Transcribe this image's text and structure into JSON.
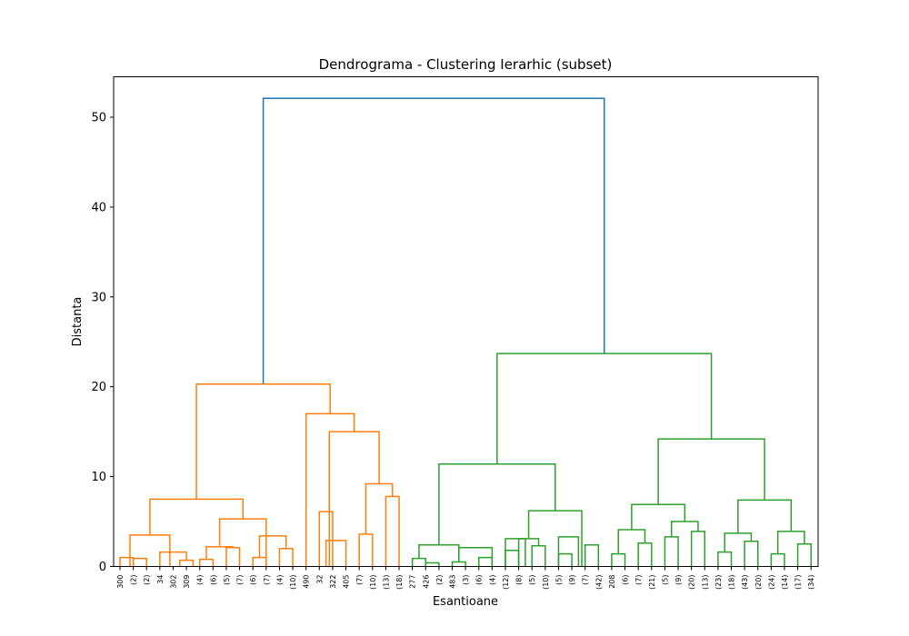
{
  "chart_data": {
    "type": "dendrogram",
    "title": "Dendrograma - Clustering Ierarhic (subset)",
    "xlabel": "Esantioane",
    "ylabel": "Distanta",
    "ylim": [
      0,
      54.5
    ],
    "yticks": [
      0,
      10,
      20,
      30,
      40,
      50
    ],
    "leaf_labels": [
      "300",
      "(2)",
      "(2)",
      "34",
      "302",
      "309",
      "(4)",
      "(6)",
      "(5)",
      "(7)",
      "(6)",
      "(7)",
      "(4)",
      "(10)",
      "490",
      "32",
      "322",
      "405",
      "(7)",
      "(10)",
      "(13)",
      "(18)",
      "277",
      "426",
      "(2)",
      "483",
      "(3)",
      "(6)",
      "(4)",
      "(12)",
      "(8)",
      "(5)",
      "(10)",
      "(5)",
      "(9)",
      "(7)",
      "(42)",
      "208",
      "(6)",
      "(7)",
      "(21)",
      "(5)",
      "(9)",
      "(20)",
      "(13)",
      "(23)",
      "(18)",
      "(43)",
      "(20)",
      "(24)",
      "(14)",
      "(17)",
      "(34)"
    ],
    "colors": {
      "C1": "#ff7f0e",
      "C2": "#2ca02c",
      "C0": "#1f77b4"
    },
    "links": [
      {
        "l": 0,
        "r": 1,
        "h": 1.0,
        "c": "C1"
      },
      {
        "l": 1,
        "r": 2,
        "h": 0.9,
        "c": "C1"
      },
      {
        "l": 0.75,
        "r": 3.75,
        "h": 3.5,
        "c": "C1"
      },
      {
        "l": 3,
        "r": 5,
        "h": 1.6,
        "c": "C1"
      },
      {
        "l": 4.5,
        "r": 5.5,
        "h": 0.7,
        "c": "C1"
      },
      {
        "l": 6,
        "r": 7,
        "h": 0.8,
        "c": "C1"
      },
      {
        "l": 6.5,
        "r": 8.5,
        "h": 2.2,
        "c": "C1"
      },
      {
        "l": 8,
        "r": 9,
        "h": 2.1,
        "c": "C1"
      },
      {
        "l": 7.5,
        "r": 11,
        "h": 5.3,
        "c": "C1"
      },
      {
        "l": 10,
        "r": 11,
        "h": 1.0,
        "c": "C1"
      },
      {
        "l": 10.5,
        "r": 12.5,
        "h": 3.4,
        "c": "C1"
      },
      {
        "l": 12,
        "r": 13,
        "h": 2.0,
        "c": "C1"
      },
      {
        "l": 2.25,
        "r": 9.25,
        "h": 7.5,
        "c": "C1"
      },
      {
        "l": 15,
        "r": 16,
        "h": 6.1,
        "c": "C1"
      },
      {
        "l": 15.5,
        "r": 17,
        "h": 2.9,
        "c": "C1"
      },
      {
        "l": 18,
        "r": 19,
        "h": 3.6,
        "c": "C1"
      },
      {
        "l": 20,
        "r": 21,
        "h": 7.8,
        "c": "C1"
      },
      {
        "l": 18.5,
        "r": 20.5,
        "h": 9.2,
        "c": "C1"
      },
      {
        "l": 15.75,
        "r": 19.5,
        "h": 15.0,
        "c": "C1"
      },
      {
        "l": 14,
        "r": 17.625,
        "h": 17.0,
        "c": "C1"
      },
      {
        "l": 5.75,
        "r": 15.8125,
        "h": 20.3,
        "c": "C1"
      },
      {
        "l": 22,
        "r": 23,
        "h": 0.9,
        "c": "C2"
      },
      {
        "l": 23,
        "r": 24,
        "h": 0.4,
        "c": "C2"
      },
      {
        "l": 22.5,
        "r": 25.5,
        "h": 2.4,
        "c": "C2"
      },
      {
        "l": 25,
        "r": 26,
        "h": 0.5,
        "c": "C2"
      },
      {
        "l": 25.5,
        "r": 28,
        "h": 2.1,
        "c": "C2"
      },
      {
        "l": 27,
        "r": 28,
        "h": 1.0,
        "c": "C2"
      },
      {
        "l": 29,
        "r": 30.5,
        "h": 3.1,
        "c": "C2"
      },
      {
        "l": 29,
        "r": 30,
        "h": 1.8,
        "c": "C2"
      },
      {
        "l": 31,
        "r": 32,
        "h": 2.3,
        "c": "C2"
      },
      {
        "l": 30,
        "r": 31.5,
        "h": 3.1,
        "c": "C2"
      },
      {
        "l": 33,
        "r": 34.5,
        "h": 3.3,
        "c": "C2"
      },
      {
        "l": 33,
        "r": 34,
        "h": 1.4,
        "c": "C2"
      },
      {
        "l": 35,
        "r": 36,
        "h": 2.4,
        "c": "C2"
      },
      {
        "l": 30.75,
        "r": 34.75,
        "h": 6.2,
        "c": "C2"
      },
      {
        "l": 24,
        "r": 32.75,
        "h": 11.4,
        "c": "C2"
      },
      {
        "l": 37,
        "r": 38,
        "h": 1.4,
        "c": "C2"
      },
      {
        "l": 37.5,
        "r": 39.5,
        "h": 4.1,
        "c": "C2"
      },
      {
        "l": 39,
        "r": 40,
        "h": 2.6,
        "c": "C2"
      },
      {
        "l": 41,
        "r": 42,
        "h": 3.3,
        "c": "C2"
      },
      {
        "l": 43,
        "r": 44,
        "h": 3.9,
        "c": "C2"
      },
      {
        "l": 41.5,
        "r": 43.5,
        "h": 5.0,
        "c": "C2"
      },
      {
        "l": 38.5,
        "r": 42.5,
        "h": 6.9,
        "c": "C2"
      },
      {
        "l": 45,
        "r": 46,
        "h": 1.6,
        "c": "C2"
      },
      {
        "l": 45.5,
        "r": 47.5,
        "h": 3.7,
        "c": "C2"
      },
      {
        "l": 47,
        "r": 48,
        "h": 2.8,
        "c": "C2"
      },
      {
        "l": 49,
        "r": 50,
        "h": 1.4,
        "c": "C2"
      },
      {
        "l": 49.5,
        "r": 51.5,
        "h": 3.9,
        "c": "C2"
      },
      {
        "l": 51,
        "r": 52,
        "h": 2.5,
        "c": "C2"
      },
      {
        "l": 46.5,
        "r": 50.5,
        "h": 7.4,
        "c": "C2"
      },
      {
        "l": 40.5,
        "r": 48.5,
        "h": 14.2,
        "c": "C2"
      },
      {
        "l": 28.375,
        "r": 44.5,
        "h": 23.7,
        "c": "C2"
      },
      {
        "l": 10.78,
        "r": 36.44,
        "h": 52.1,
        "c": "C0"
      }
    ]
  }
}
